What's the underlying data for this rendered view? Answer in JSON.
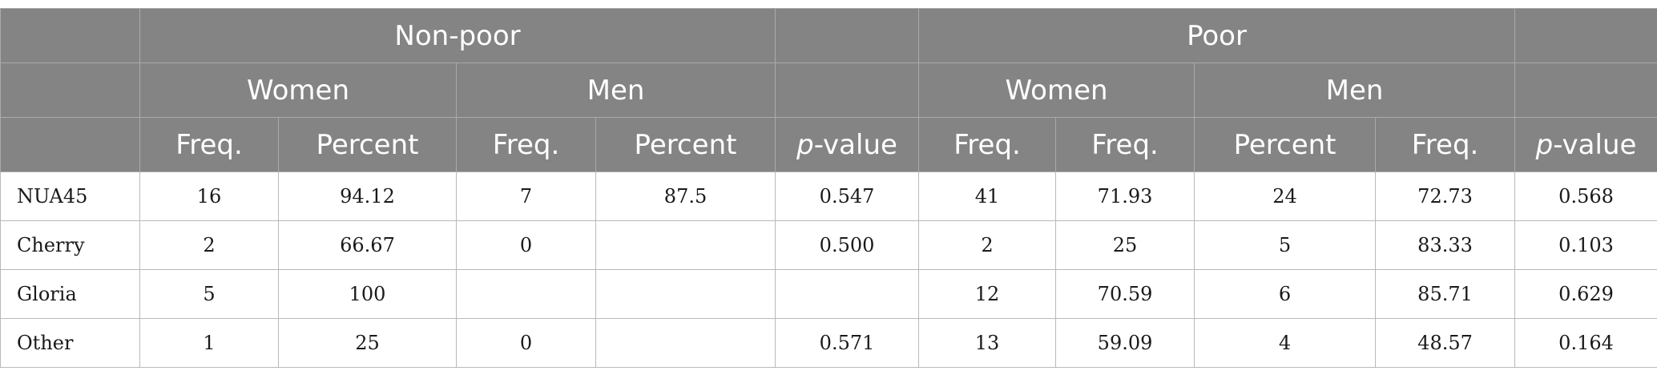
{
  "header": {
    "groups": [
      {
        "label": "Non-poor"
      },
      {
        "label": "Poor"
      }
    ],
    "subgroups": [
      {
        "label": "Women"
      },
      {
        "label": "Men"
      },
      {
        "label": "Women"
      },
      {
        "label": "Men"
      }
    ],
    "columns": [
      {
        "label": "Freq."
      },
      {
        "label": "Percent"
      },
      {
        "label": "Freq."
      },
      {
        "label": "Percent"
      },
      {
        "p": "p",
        "rest": "-value"
      },
      {
        "label": "Freq."
      },
      {
        "label": "Freq."
      },
      {
        "label": "Percent"
      },
      {
        "label": "Freq."
      },
      {
        "p": "p",
        "rest": "-value"
      }
    ]
  },
  "rows": [
    {
      "label": "NUA45",
      "cells": [
        "16",
        "94.12",
        "7",
        "87.5",
        "0.547",
        "41",
        "71.93",
        "24",
        "72.73",
        "0.568"
      ]
    },
    {
      "label": "Cherry",
      "cells": [
        "2",
        "66.67",
        "0",
        "",
        "0.500",
        "2",
        "25",
        "5",
        "83.33",
        "0.103"
      ]
    },
    {
      "label": "Gloria",
      "cells": [
        "5",
        "100",
        "",
        "",
        "",
        "12",
        "70.59",
        "6",
        "85.71",
        "0.629"
      ]
    },
    {
      "label": "Other",
      "cells": [
        "1",
        "25",
        "0",
        "",
        "0.571",
        "13",
        "59.09",
        "4",
        "48.57",
        "0.164"
      ]
    }
  ]
}
